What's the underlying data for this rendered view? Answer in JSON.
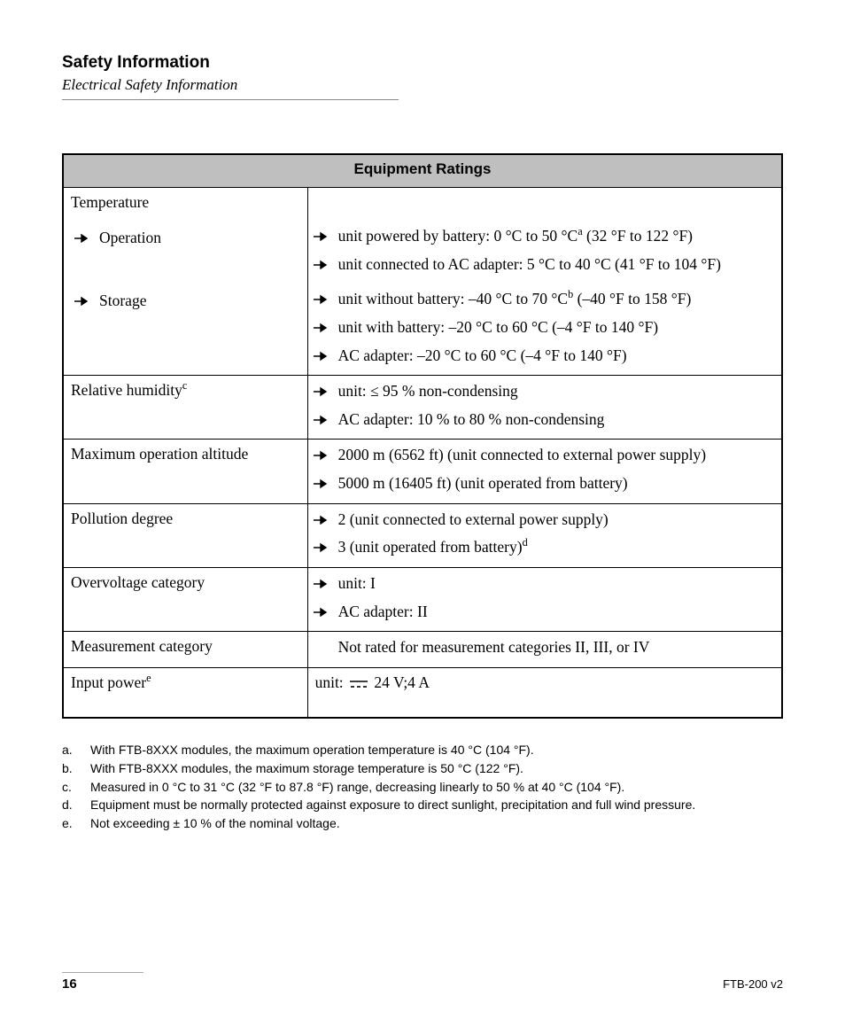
{
  "header": {
    "title": "Safety Information",
    "subtitle": "Electrical Safety Information"
  },
  "table": {
    "title": "Equipment Ratings",
    "rows": [
      {
        "label": {
          "text": "Temperature",
          "style": "plain"
        },
        "values": []
      },
      {
        "label": {
          "text": "Operation",
          "style": "bullet"
        },
        "values": [
          {
            "style": "bullet",
            "text": "unit powered by battery: 0 °C to 50 °C",
            "sup": "a",
            "tail": " (32 °F to 122 °F)"
          },
          {
            "style": "bullet",
            "text": "unit connected to AC adapter: 5 °C to 40 °C (41 °F to 104 °F)"
          }
        ]
      },
      {
        "label": {
          "text": "Storage",
          "style": "bullet"
        },
        "values": [
          {
            "style": "bullet",
            "text": "unit without battery: –40 °C to 70 °C",
            "sup": "b",
            "tail": " (–40 °F to 158 °F)"
          },
          {
            "style": "bullet",
            "text": "unit with battery: –20 °C to 60 °C (–4 °F to 140 °F)"
          },
          {
            "style": "bullet",
            "text": "AC adapter: –20 °C to 60 °C (–4 °F to 140 °F)"
          }
        ]
      },
      {
        "sep": true,
        "label": {
          "text": "Relative humidity",
          "sup": "c",
          "style": "plain"
        },
        "values": [
          {
            "style": "bullet",
            "text": "unit: ≤ 95 % non-condensing"
          },
          {
            "style": "bullet",
            "text": "AC adapter: 10 % to 80 % non-condensing"
          }
        ]
      },
      {
        "sep": true,
        "label": {
          "text": "Maximum operation altitude",
          "style": "plain"
        },
        "values": [
          {
            "style": "bullet",
            "text": "2000 m (6562 ft) (unit connected to external power supply)"
          },
          {
            "style": "bullet",
            "text": "5000 m (16405 ft) (unit operated from battery)"
          }
        ]
      },
      {
        "sep": true,
        "label": {
          "text": "Pollution degree",
          "style": "plain"
        },
        "values": [
          {
            "style": "bullet",
            "text": "2 (unit connected to external power supply)"
          },
          {
            "style": "bullet",
            "text": "3 (unit operated from battery)",
            "sup": "d"
          }
        ]
      },
      {
        "sep": true,
        "label": {
          "text": "Overvoltage category",
          "style": "plain"
        },
        "values": [
          {
            "style": "bullet",
            "text": "unit: I"
          },
          {
            "style": "bullet",
            "text": "AC adapter: II"
          }
        ]
      },
      {
        "sep": true,
        "label": {
          "text": "Measurement category",
          "style": "plain"
        },
        "values": [
          {
            "style": "plain",
            "text": "Not rated for measurement categories II, III, or IV"
          }
        ]
      },
      {
        "sep": true,
        "label": {
          "text": "Input power",
          "sup": "e",
          "style": "plain"
        },
        "values": [
          {
            "style": "dc",
            "prefix": "unit: ",
            "text": " 24 V;4 A"
          }
        ],
        "pad_bottom": true
      }
    ]
  },
  "footnotes": [
    {
      "label": "a.",
      "text": "With FTB-8XXX modules, the maximum operation temperature is 40 °C (104 °F)."
    },
    {
      "label": "b.",
      "text": "With FTB-8XXX modules, the maximum storage temperature is 50 °C (122 °F)."
    },
    {
      "label": "c.",
      "text": "Measured in 0 °C to 31 °C (32 °F to 87.8 °F) range, decreasing linearly to 50 % at 40 °C (104 °F)."
    },
    {
      "label": "d.",
      "text": "Equipment must be normally protected against exposure to direct sunlight, precipitation and full wind pressure."
    },
    {
      "label": "e.",
      "text": "Not exceeding ± 10 % of the nominal voltage."
    }
  ],
  "footer": {
    "page": "16",
    "model": "FTB-200 v2"
  }
}
